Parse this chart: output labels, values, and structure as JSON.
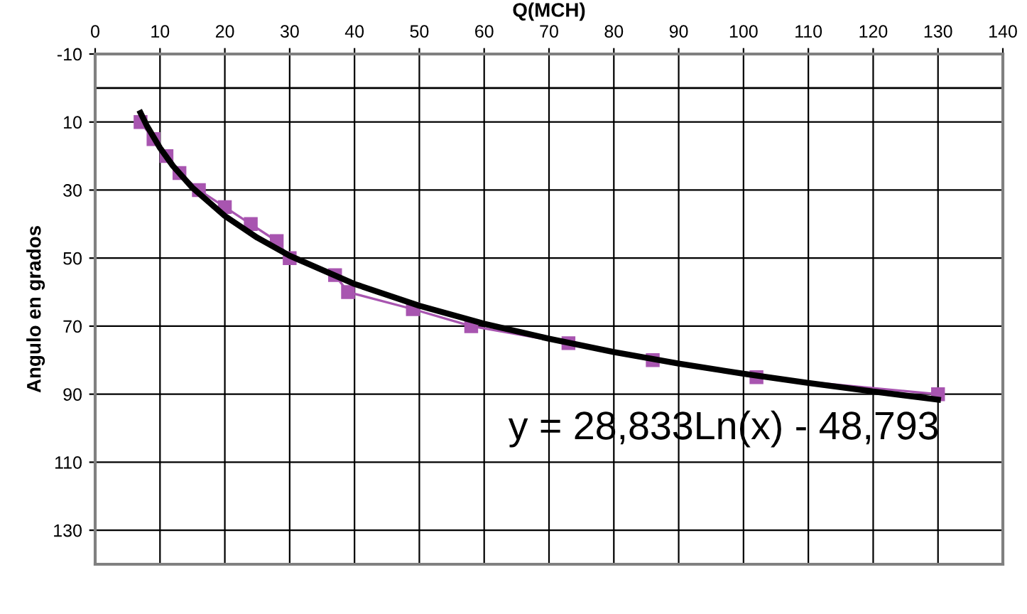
{
  "chart_data": {
    "type": "line",
    "xlabel": "Q(MCH)",
    "ylabel": "Angulo en grados",
    "xlim": [
      0,
      140
    ],
    "xticks": [
      0,
      10,
      20,
      30,
      40,
      50,
      60,
      70,
      80,
      90,
      100,
      110,
      120,
      130,
      140
    ],
    "ylim": [
      140,
      -10
    ],
    "yticks": [
      -10,
      10,
      30,
      50,
      70,
      90,
      110,
      130
    ],
    "grid": true,
    "legend": false,
    "ref_lines": [
      {
        "axis": "y",
        "value": 0,
        "color": "#000000"
      }
    ],
    "annotations": [
      "y = 28,833Ln(x) - 48,793"
    ],
    "series": [
      {
        "color": "#a855b0",
        "marker": "square",
        "line_style": "solid",
        "x": [
          7,
          9,
          11,
          13,
          16,
          20,
          24,
          28,
          30,
          37,
          39,
          49,
          58,
          73,
          86,
          102,
          130
        ],
        "values": [
          10,
          15,
          20,
          25,
          30,
          35,
          40,
          45,
          50,
          55,
          60,
          65,
          70,
          75,
          80,
          85,
          90
        ]
      },
      {
        "color": "#000000",
        "marker": "none",
        "line_style": "solid",
        "x": [
          7,
          8,
          10,
          12,
          15,
          20,
          25,
          30,
          40,
          50,
          60,
          70,
          80,
          90,
          100,
          110,
          120,
          130
        ],
        "values": [
          7.3,
          11.2,
          17.6,
          22.9,
          29.3,
          37.6,
          44,
          49.3,
          57.6,
          64,
          69.3,
          73.7,
          77.6,
          81,
          84,
          86.7,
          89.2,
          91.6
        ]
      }
    ]
  }
}
